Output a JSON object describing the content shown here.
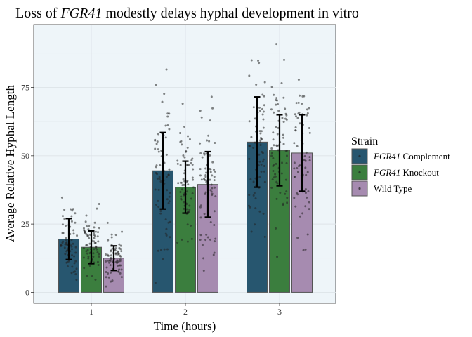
{
  "chart_data": {
    "type": "bar",
    "title_parts": [
      {
        "text": "Loss of ",
        "italic": false
      },
      {
        "text": "FGR41",
        "italic": true
      },
      {
        "text": " modestly delays hyphal development in vitro",
        "italic": false
      }
    ],
    "xlabel": "Time (hours)",
    "ylabel": "Average Relative Hyphal Length",
    "categories": [
      "1",
      "2",
      "3"
    ],
    "ylim": [
      -4,
      98
    ],
    "yticks": [
      0,
      25,
      50,
      75
    ],
    "grid": true,
    "legend": {
      "title": "Strain",
      "position": "right"
    },
    "series": [
      {
        "name_parts": [
          {
            "text": "FGR41",
            "italic": true
          },
          {
            "text": " Complement",
            "italic": false
          }
        ],
        "color": "#27566f",
        "values": [
          19.5,
          44.5,
          55.0
        ],
        "sd": [
          7.5,
          14.0,
          16.5
        ]
      },
      {
        "name_parts": [
          {
            "text": "FGR41",
            "italic": true
          },
          {
            "text": " Knockout",
            "italic": false
          }
        ],
        "color": "#3b7e3e",
        "values": [
          16.5,
          38.5,
          52.0
        ],
        "sd": [
          6.0,
          9.5,
          13.0
        ]
      },
      {
        "name_parts": [
          {
            "text": "Wild Type",
            "italic": false
          }
        ],
        "color": "#a68bb0",
        "values": [
          12.5,
          39.5,
          51.0
        ],
        "sd": [
          4.5,
          12.0,
          14.0
        ]
      }
    ]
  }
}
